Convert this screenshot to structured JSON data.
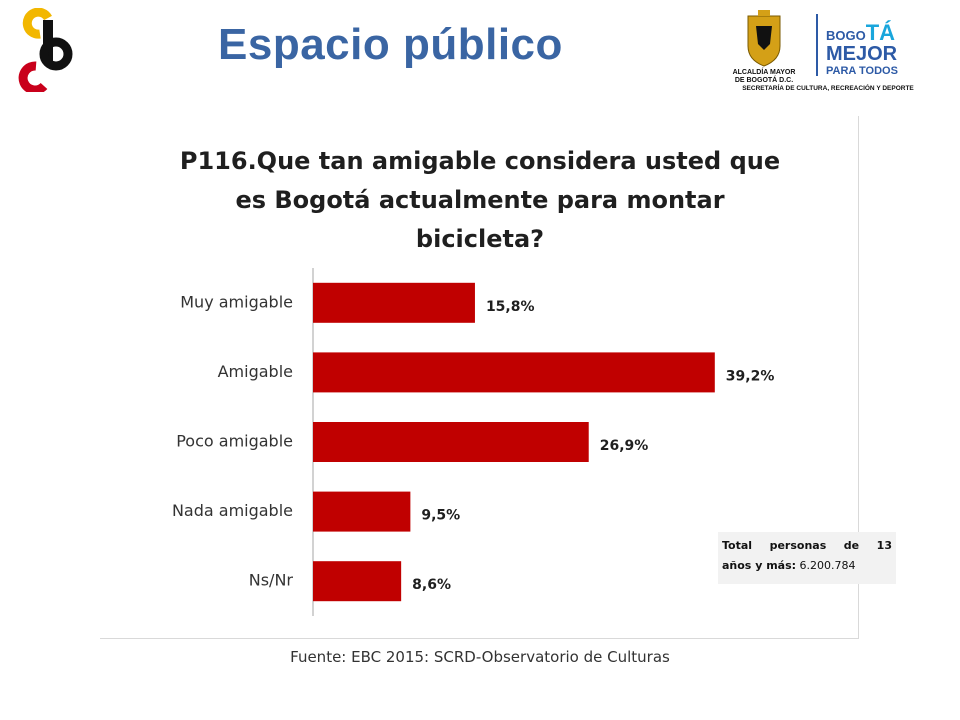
{
  "header": {
    "title": "Espacio público"
  },
  "logo_right": {
    "crest_line1": "ALCALDÍA MAYOR",
    "crest_line2": "DE BOGOTÁ D.C.",
    "brand_part1": "BOGO",
    "brand_part2": "TÁ",
    "brand_line2": "MEJOR",
    "brand_line3": "PARA TODOS",
    "secretaria": "SECRETARÍA DE CULTURA, RECREACIÓN Y DEPORTE",
    "color_blue": "#2d5aa6",
    "color_cyan": "#19a6dc"
  },
  "logo_left": {
    "colors": [
      "#f2b700",
      "#c9001b",
      "#111111"
    ]
  },
  "chart_data": {
    "type": "bar",
    "orientation": "horizontal",
    "title_lines": [
      "P116.Que tan amigable considera usted  que",
      "es Bogotá actualmente para montar",
      "bicicleta?"
    ],
    "categories": [
      "Muy amigable",
      "Amigable",
      "Poco amigable",
      "Nada amigable",
      "Ns/Nr"
    ],
    "values": [
      15.8,
      39.2,
      26.9,
      9.5,
      8.6
    ],
    "data_labels": [
      "15,8%",
      "39,2%",
      "26,9%",
      "9,5%",
      "8,6%"
    ],
    "bar_color": "#c00000",
    "xlim": [
      0,
      40
    ],
    "grid": false
  },
  "note": {
    "words": [
      "Total",
      "personas",
      "de",
      "13"
    ],
    "line2_bold": "años y más:",
    "line2_value": "6.200.784"
  },
  "source": "Fuente: EBC 2015: SCRD-Observatorio de Culturas"
}
